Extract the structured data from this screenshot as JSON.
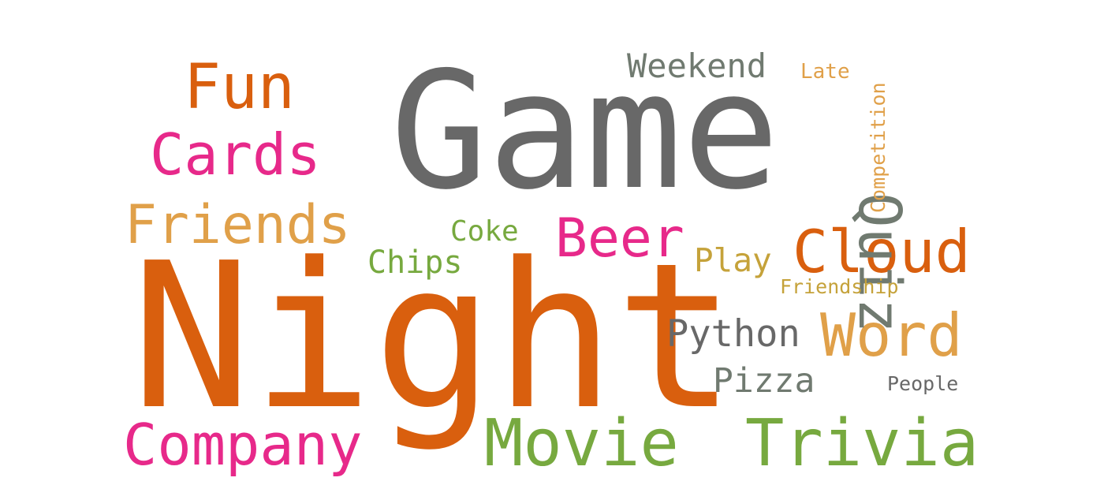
{
  "colors": {
    "background": "#ffffff",
    "orange": "#d95f0e",
    "gray": "#686868",
    "pink": "#e7298a",
    "tan": "#e0a049",
    "green": "#77a93f",
    "sage": "#707a70"
  },
  "words": [
    {
      "key": "game",
      "text": "Game",
      "color": "#686868"
    },
    {
      "key": "night",
      "text": "Night",
      "color": "#d95f0e"
    },
    {
      "key": "movie",
      "text": "Movie",
      "color": "#77a93f"
    },
    {
      "key": "trivia",
      "text": "Trivia",
      "color": "#77a93f"
    },
    {
      "key": "company",
      "text": "Company",
      "color": "#e7298a"
    },
    {
      "key": "friends",
      "text": "Friends",
      "color": "#e0a049"
    },
    {
      "key": "cards",
      "text": "Cards",
      "color": "#e7298a"
    },
    {
      "key": "fun",
      "text": "Fun",
      "color": "#d95f0e"
    },
    {
      "key": "cloud",
      "text": "Cloud",
      "color": "#d95f0e"
    },
    {
      "key": "word",
      "text": "Word",
      "color": "#e0a049"
    },
    {
      "key": "beer",
      "text": "Beer",
      "color": "#e7298a"
    },
    {
      "key": "python",
      "text": "Python",
      "color": "#686868"
    },
    {
      "key": "quiz",
      "text": "Quiz",
      "color": "#707a70"
    },
    {
      "key": "weekend",
      "text": "Weekend",
      "color": "#707a70"
    },
    {
      "key": "pizza",
      "text": "Pizza",
      "color": "#707a70"
    },
    {
      "key": "play",
      "text": "Play",
      "color": "#c5a23a"
    },
    {
      "key": "chips",
      "text": "Chips",
      "color": "#77a93f"
    },
    {
      "key": "coke",
      "text": "Coke",
      "color": "#77a93f"
    },
    {
      "key": "competition",
      "text": "Competition",
      "color": "#e0a049"
    },
    {
      "key": "friendship",
      "text": "Friendship",
      "color": "#c5a23a"
    },
    {
      "key": "late",
      "text": "Late",
      "color": "#e0a049"
    },
    {
      "key": "people",
      "text": "People",
      "color": "#686868"
    }
  ]
}
